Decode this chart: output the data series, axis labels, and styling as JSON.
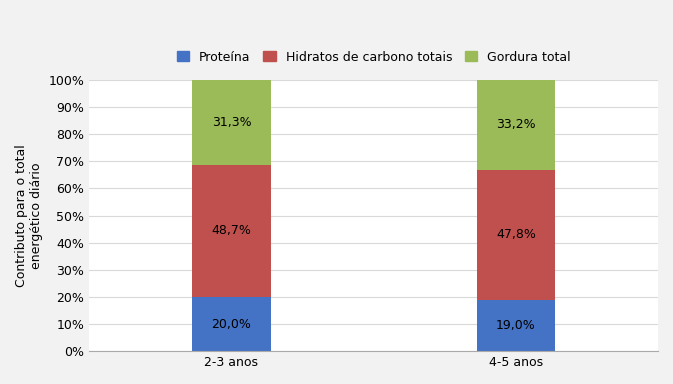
{
  "categories": [
    "2-3 anos",
    "4-5 anos"
  ],
  "proteina": [
    20.0,
    19.0
  ],
  "hidratos": [
    48.7,
    47.8
  ],
  "gordura": [
    31.3,
    33.2
  ],
  "colors": {
    "proteina": "#4472C4",
    "hidratos": "#C0504D",
    "gordura": "#9BBB59"
  },
  "legend_labels": [
    "Proteína",
    "Hidratos de carbono totais",
    "Gordura total"
  ],
  "ylabel": "Contributo para o total\nenergético diário",
  "ylim": [
    0,
    100
  ],
  "yticks": [
    0,
    10,
    20,
    30,
    40,
    50,
    60,
    70,
    80,
    90,
    100
  ],
  "ytick_labels": [
    "0%",
    "10%",
    "20%",
    "30%",
    "40%",
    "50%",
    "60%",
    "70%",
    "80%",
    "90%",
    "100%"
  ],
  "bar_width": 0.55,
  "label_fontsize": 9,
  "legend_fontsize": 9,
  "axis_fontsize": 9,
  "tick_fontsize": 9,
  "background_color": "#f2f2f2",
  "plot_bg_color": "#ffffff"
}
